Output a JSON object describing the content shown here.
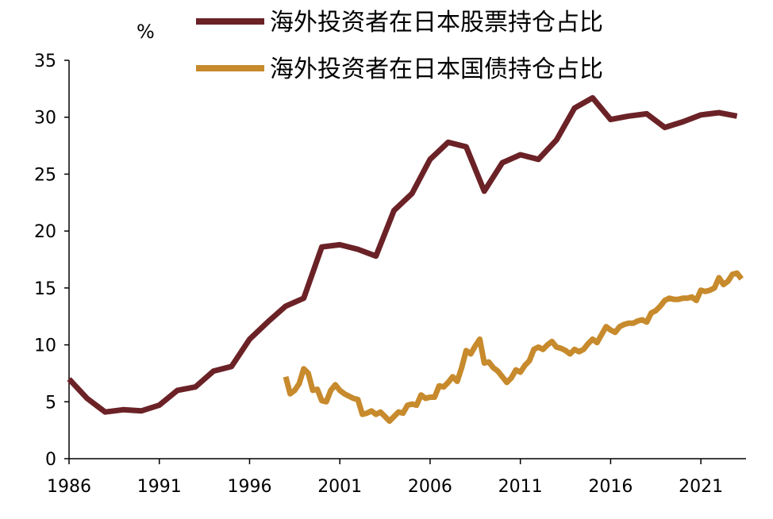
{
  "chart_data": {
    "type": "line",
    "title": "",
    "xlabel": "",
    "ylabel": "%",
    "xlim": [
      1986,
      2023.5
    ],
    "ylim": [
      0,
      35
    ],
    "yticks": [
      "0",
      "5",
      "10",
      "15",
      "20",
      "25",
      "30",
      "35"
    ],
    "xticks": [
      "1986",
      "1991",
      "1996",
      "2001",
      "2006",
      "2011",
      "2016",
      "2021"
    ],
    "grid": false,
    "legend_position": "top",
    "series": [
      {
        "name": "海外投资者在日本股票持仓占比",
        "color": "#6b2226",
        "x": [
          1986,
          1987,
          1988,
          1989,
          1990,
          1991,
          1992,
          1993,
          1994,
          1995,
          1996,
          1997,
          1998,
          1999,
          2000,
          2001,
          2002,
          2003,
          2004,
          2005,
          2006,
          2007,
          2008,
          2009,
          2010,
          2011,
          2012,
          2013,
          2014,
          2015,
          2016,
          2017,
          2018,
          2019,
          2020,
          2021,
          2022,
          2023
        ],
        "y": [
          7.0,
          5.3,
          4.1,
          4.3,
          4.2,
          4.7,
          6.0,
          6.3,
          7.7,
          8.1,
          10.5,
          12.0,
          13.4,
          14.1,
          18.6,
          18.8,
          18.4,
          17.8,
          21.8,
          23.3,
          26.3,
          27.8,
          27.4,
          23.5,
          26.0,
          26.7,
          26.3,
          28.0,
          30.8,
          31.7,
          29.8,
          30.1,
          30.3,
          29.1,
          29.6,
          30.2,
          30.4,
          30.1
        ]
      },
      {
        "name": "海外投资者在日本国债持仓占比",
        "color": "#c78a2c",
        "x": [
          1998.0,
          1998.25,
          1998.5,
          1998.75,
          1999.0,
          1999.25,
          1999.5,
          1999.75,
          2000.0,
          2000.25,
          2000.5,
          2000.75,
          2001.0,
          2001.25,
          2001.5,
          2001.75,
          2002.0,
          2002.25,
          2002.5,
          2002.75,
          2003.0,
          2003.25,
          2003.5,
          2003.75,
          2004.0,
          2004.25,
          2004.5,
          2004.75,
          2005.0,
          2005.25,
          2005.5,
          2005.75,
          2006.0,
          2006.25,
          2006.5,
          2006.75,
          2007.0,
          2007.25,
          2007.5,
          2007.75,
          2008.0,
          2008.25,
          2008.5,
          2008.75,
          2009.0,
          2009.25,
          2009.5,
          2009.75,
          2010.0,
          2010.25,
          2010.5,
          2010.75,
          2011.0,
          2011.25,
          2011.5,
          2011.75,
          2012.0,
          2012.25,
          2012.5,
          2012.75,
          2013.0,
          2013.25,
          2013.5,
          2013.75,
          2014.0,
          2014.25,
          2014.5,
          2014.75,
          2015.0,
          2015.25,
          2015.5,
          2015.75,
          2016.0,
          2016.25,
          2016.5,
          2016.75,
          2017.0,
          2017.25,
          2017.5,
          2017.75,
          2018.0,
          2018.25,
          2018.5,
          2018.75,
          2019.0,
          2019.25,
          2019.5,
          2019.75,
          2020.0,
          2020.25,
          2020.5,
          2020.75,
          2021.0,
          2021.25,
          2021.5,
          2021.75,
          2022.0,
          2022.25,
          2022.5,
          2022.75,
          2023.0,
          2023.25
        ],
        "y": [
          7.2,
          5.7,
          6.0,
          6.6,
          7.9,
          7.5,
          6.0,
          6.1,
          5.1,
          5.0,
          6.0,
          6.5,
          6.0,
          5.7,
          5.5,
          5.3,
          5.2,
          3.9,
          4.0,
          4.2,
          3.9,
          4.1,
          3.7,
          3.3,
          3.7,
          4.1,
          4.0,
          4.7,
          4.8,
          4.7,
          5.6,
          5.3,
          5.4,
          5.4,
          6.4,
          6.3,
          6.7,
          7.2,
          6.8,
          8.0,
          9.5,
          9.2,
          9.9,
          10.5,
          8.4,
          8.5,
          8.0,
          7.7,
          7.2,
          6.7,
          7.1,
          7.8,
          7.6,
          8.2,
          8.6,
          9.6,
          9.8,
          9.6,
          10.0,
          10.3,
          9.8,
          9.7,
          9.5,
          9.2,
          9.6,
          9.4,
          9.6,
          10.1,
          10.5,
          10.2,
          10.9,
          11.6,
          11.3,
          11.1,
          11.6,
          11.8,
          11.9,
          11.9,
          12.1,
          12.2,
          12.0,
          12.8,
          13.0,
          13.4,
          13.9,
          14.1,
          14.0,
          14.0,
          14.1,
          14.1,
          14.2,
          13.9,
          14.8,
          14.7,
          14.8,
          15.0,
          15.9,
          15.3,
          15.6,
          16.2,
          16.3,
          15.8
        ]
      }
    ]
  }
}
